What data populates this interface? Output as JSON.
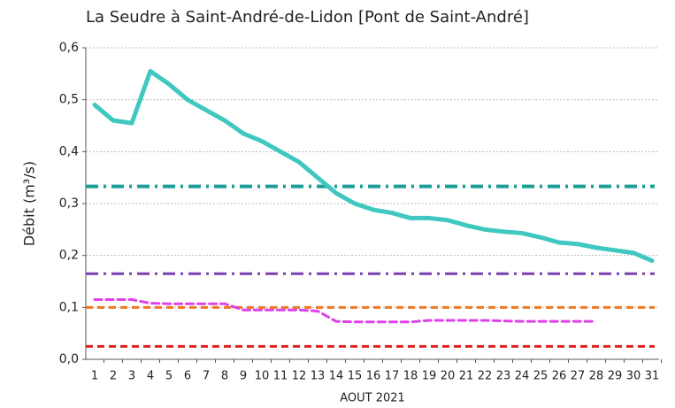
{
  "chart_data": {
    "type": "line",
    "title": "La Seudre à Saint-André-de-Lidon [Pont de Saint-André]",
    "y_label": "Débit (m³/s)",
    "x_label": "AOUT 2021",
    "categories": [
      "1",
      "2",
      "3",
      "4",
      "5",
      "6",
      "7",
      "8",
      "9",
      "10",
      "11",
      "12",
      "13",
      "14",
      "15",
      "16",
      "17",
      "18",
      "19",
      "20",
      "21",
      "22",
      "23",
      "24",
      "25",
      "26",
      "27",
      "28",
      "29",
      "30",
      "31"
    ],
    "series": [
      {
        "color": "#40c8c0",
        "style": "solid",
        "values": [
          0.49,
          0.46,
          0.455,
          0.555,
          0.53,
          0.5,
          0.48,
          0.46,
          0.435,
          0.42,
          0.4,
          0.38,
          0.35,
          0.32,
          0.3,
          0.288,
          0.282,
          0.272,
          0.272,
          0.268,
          0.258,
          0.25,
          0.246,
          0.243,
          0.235,
          0.225,
          0.222,
          0.215,
          0.21,
          0.205,
          0.19
        ]
      },
      {
        "color": "#e040e8",
        "style": "dashed",
        "values": [
          0.115,
          0.115,
          0.115,
          0.108,
          0.107,
          0.107,
          0.107,
          0.107,
          0.095,
          0.095,
          0.095,
          0.095,
          0.093,
          0.073,
          0.072,
          0.072,
          0.072,
          0.072,
          0.075,
          0.075,
          0.075,
          0.075,
          0.074,
          0.073,
          0.073,
          0.073,
          0.073,
          0.073,
          null,
          null,
          null
        ]
      }
    ],
    "reference_lines": [
      {
        "value": 0.333,
        "color": "#1a9e96",
        "style": "dashdot"
      },
      {
        "value": 0.165,
        "color": "#7b3fb0",
        "style": "dashdot"
      },
      {
        "value": 0.1,
        "color": "#f07820",
        "style": "dashed"
      },
      {
        "value": 0.025,
        "color": "#e02020",
        "style": "dashed"
      }
    ],
    "ylim": [
      0,
      0.6
    ],
    "yticks": [
      {
        "value": 0,
        "label": "0,0"
      },
      {
        "value": 0.1,
        "label": "0,1"
      },
      {
        "value": 0.2,
        "label": "0,2"
      },
      {
        "value": 0.3,
        "label": "0,3"
      },
      {
        "value": 0.4,
        "label": "0,4"
      },
      {
        "value": 0.5,
        "label": "0,5"
      },
      {
        "value": 0.6,
        "label": "0,6"
      }
    ],
    "grid": true
  }
}
